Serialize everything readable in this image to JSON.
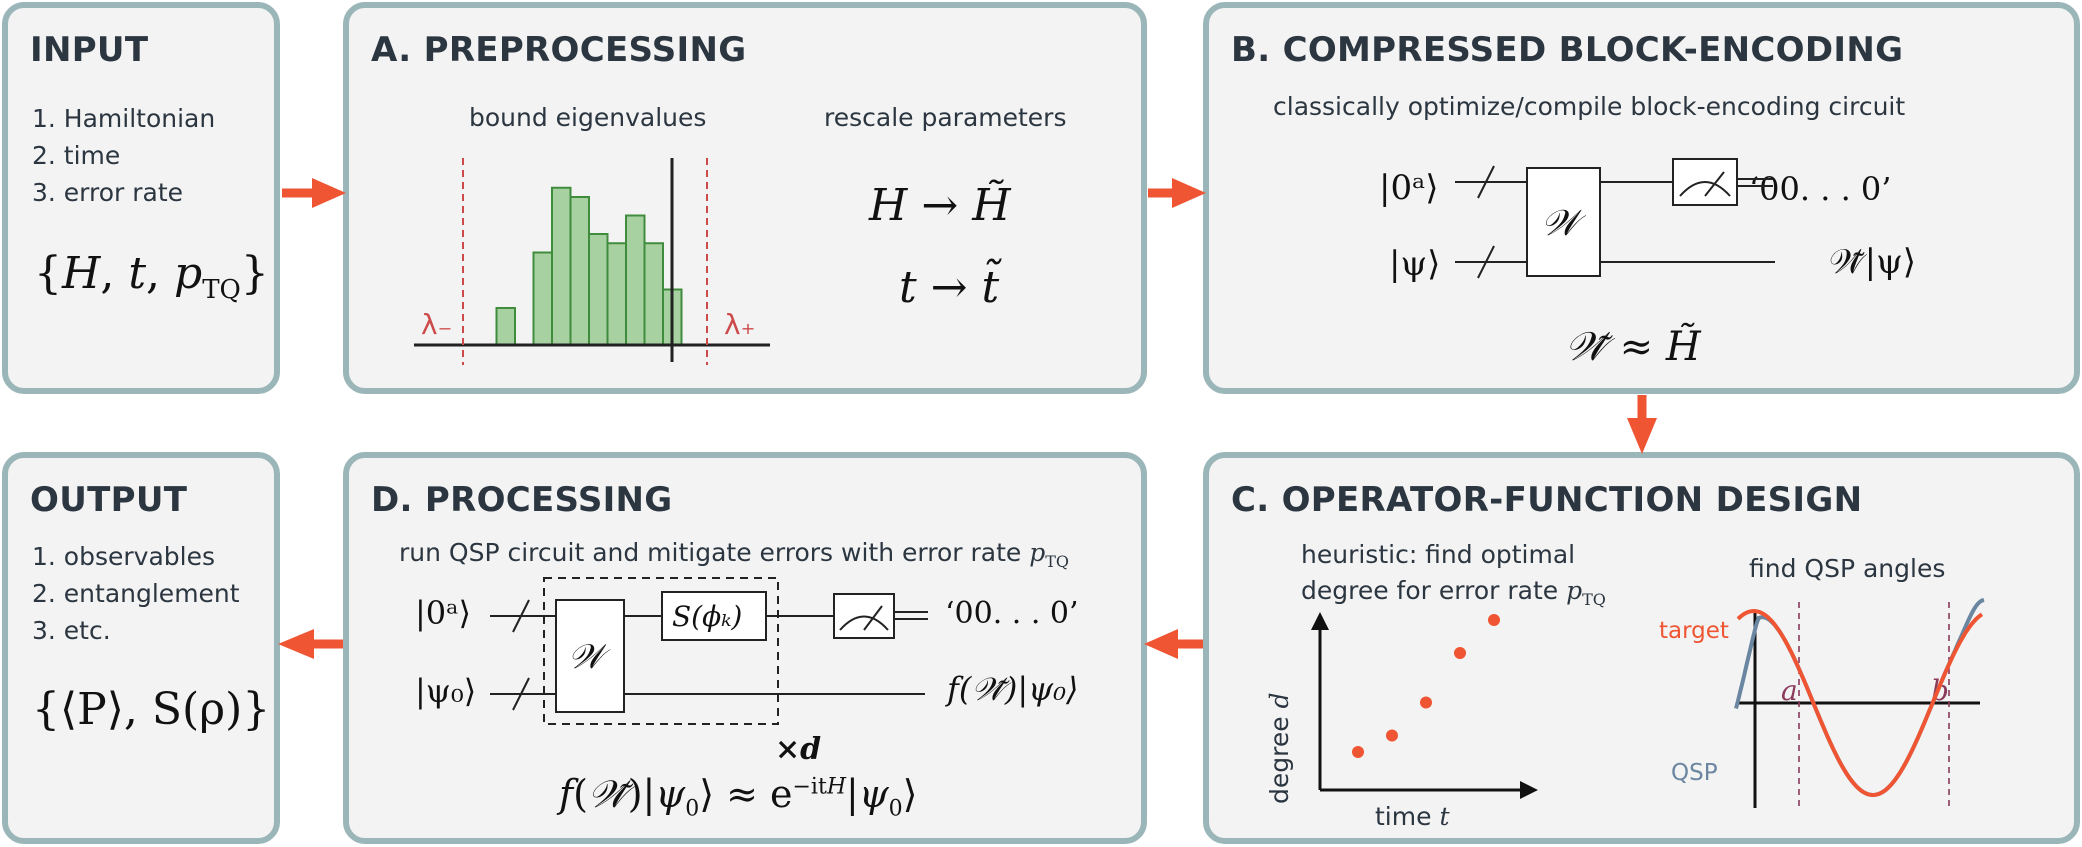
{
  "colors": {
    "panel_border": "#9bb6b9",
    "panel_bg": "#f3f3f3",
    "arrow": "#ef5533",
    "hist_fill": "#a8d1a2",
    "hist_stroke": "#3f8c3d",
    "dashed_red": "#cc4a4a",
    "target_curve": "#ef5533",
    "qsp_curve": "#6a86a0",
    "dashed_purple": "#8a3a5c"
  },
  "input": {
    "title": "INPUT",
    "items": [
      "1. Hamiltonian",
      "2. time",
      "3. error rate"
    ],
    "formula": "{H, t, p_TQ}"
  },
  "preprocessing": {
    "title": "A. PREPROCESSING",
    "left_caption": "bound eigenvalues",
    "right_caption": "rescale parameters",
    "lambda_minus": "λ₋",
    "lambda_plus": "λ₊",
    "histogram": [
      0,
      0.2,
      0,
      0.5,
      0.85,
      0.8,
      0.6,
      0.55,
      0.7,
      0.55,
      0.3
    ],
    "map1": "H → H̃",
    "map2": "t → t̃"
  },
  "block_encoding": {
    "title": "B. COMPRESSED BLOCK-ENCODING",
    "subtitle": "classically optimize/compile block-encoding circuit",
    "ket_top": "|0ᵃ⟩",
    "ket_bottom": "|ψ⟩",
    "gate": "𝒲",
    "out_top": "‘00. . . 0’",
    "out_bottom": "𝒲̃|ψ⟩",
    "relation": "𝒲̃ ≈ H̃"
  },
  "operator_function": {
    "title": "C. OPERATOR-FUNCTION DESIGN",
    "heuristic_line1": "heuristic: find optimal",
    "heuristic_line2": "degree for error rate p_TQ",
    "ylabel": "degree d",
    "xlabel": "time t",
    "right_caption": "find QSP angles",
    "label_target": "target",
    "label_qsp": "QSP",
    "label_a": "a",
    "label_b": "b"
  },
  "chart_data": [
    {
      "type": "scatter",
      "title": "",
      "xlabel": "time t",
      "ylabel": "degree d",
      "x": [
        1,
        2,
        3,
        4,
        5
      ],
      "values": [
        1,
        1.5,
        2.5,
        4,
        5
      ]
    }
  ],
  "processing": {
    "title": "D. PROCESSING",
    "subtitle": "run QSP circuit and mitigate errors with error rate p_TQ",
    "ket_top": "|0ᵃ⟩",
    "ket_bottom": "|ψ₀⟩",
    "gate_w": "𝒲",
    "gate_s": "S(ϕₖ)",
    "out_top": "‘00. . . 0’",
    "out_bottom": "f(𝒲̃)|ψ₀⟩",
    "repeat": "×d",
    "relation": "f(𝒲̃)|ψ₀⟩ ≈ e^{−itH}|ψ₀⟩"
  },
  "output": {
    "title": "OUTPUT",
    "items": [
      "1. observables",
      "2. entanglement",
      "3. etc."
    ],
    "formula": "{⟨P⟩, S(ρ)}"
  }
}
